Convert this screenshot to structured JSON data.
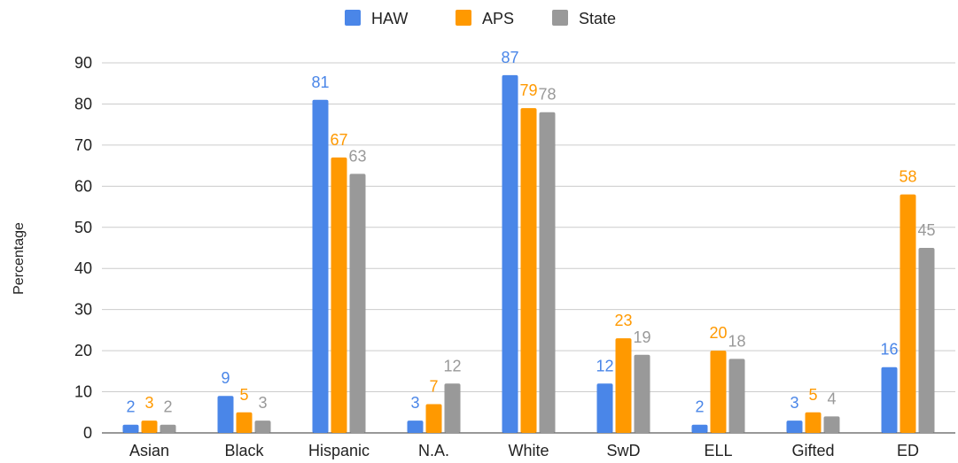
{
  "chart_data": {
    "type": "bar",
    "title": "",
    "xlabel": "",
    "ylabel": "Percentage",
    "ylim": [
      0,
      90
    ],
    "yticks": [
      0,
      10,
      20,
      30,
      40,
      50,
      60,
      70,
      80,
      90
    ],
    "grid": true,
    "legend_position": "top",
    "categories": [
      "Asian",
      "Black",
      "Hispanic",
      "N.A.",
      "White",
      "SwD",
      "ELL",
      "Gifted",
      "ED"
    ],
    "series": [
      {
        "name": "HAW",
        "color": "#4a86e8",
        "values": [
          2,
          9,
          81,
          3,
          87,
          12,
          2,
          3,
          16
        ]
      },
      {
        "name": "APS",
        "color": "#ff9900",
        "values": [
          3,
          5,
          67,
          7,
          79,
          23,
          20,
          5,
          58
        ]
      },
      {
        "name": "State",
        "color": "#999999",
        "values": [
          2,
          3,
          63,
          12,
          78,
          19,
          18,
          4,
          45
        ]
      }
    ]
  }
}
